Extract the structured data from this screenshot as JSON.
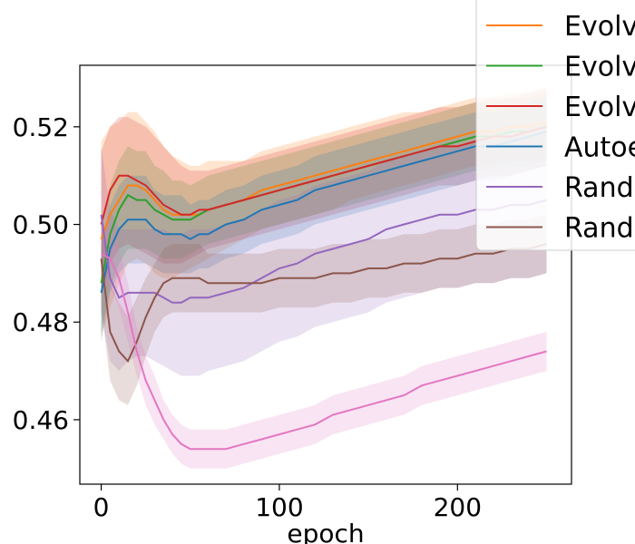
{
  "chart_data": {
    "type": "line",
    "title": "",
    "xlabel": "epoch",
    "ylabel": "",
    "xlim": [
      -12,
      264
    ],
    "ylim": [
      0.4468,
      0.5326
    ],
    "xticks": [
      0,
      100,
      200
    ],
    "yticks": [
      0.46,
      0.48,
      0.5,
      0.52
    ],
    "xtick_labels": [
      "0",
      "100",
      "200"
    ],
    "ytick_labels": [
      "0.46",
      "0.48",
      "0.50",
      "0.52"
    ],
    "grid": false,
    "legend": {
      "position": "top-right",
      "entries": [
        "Evolv",
        "Evolv",
        "Evolv",
        "Autoe",
        "Rand",
        "Rand"
      ]
    },
    "series": [
      {
        "name": "Evolv",
        "color": "#ff7f0e",
        "x": [
          0,
          5,
          10,
          15,
          20,
          25,
          30,
          35,
          40,
          45,
          50,
          55,
          60,
          70,
          80,
          90,
          100,
          110,
          120,
          130,
          140,
          150,
          160,
          170,
          180,
          190,
          200,
          210,
          220,
          230,
          240,
          250
        ],
        "y": [
          0.497,
          0.502,
          0.505,
          0.508,
          0.508,
          0.507,
          0.505,
          0.503,
          0.502,
          0.502,
          0.502,
          0.502,
          0.503,
          0.504,
          0.505,
          0.507,
          0.508,
          0.509,
          0.51,
          0.511,
          0.512,
          0.513,
          0.514,
          0.515,
          0.516,
          0.517,
          0.518,
          0.519,
          0.519,
          0.52,
          0.52,
          0.521
        ],
        "y_lower": [
          0.477,
          0.483,
          0.488,
          0.492,
          0.493,
          0.492,
          0.49,
          0.489,
          0.489,
          0.49,
          0.491,
          0.492,
          0.493,
          0.495,
          0.497,
          0.499,
          0.5,
          0.501,
          0.502,
          0.503,
          0.505,
          0.506,
          0.507,
          0.508,
          0.509,
          0.51,
          0.511,
          0.512,
          0.512,
          0.513,
          0.513,
          0.514
        ],
        "y_upper": [
          0.517,
          0.52,
          0.521,
          0.523,
          0.523,
          0.521,
          0.519,
          0.516,
          0.514,
          0.513,
          0.512,
          0.512,
          0.513,
          0.513,
          0.513,
          0.515,
          0.516,
          0.517,
          0.518,
          0.519,
          0.52,
          0.521,
          0.522,
          0.523,
          0.523,
          0.524,
          0.525,
          0.526,
          0.526,
          0.527,
          0.527,
          0.528
        ]
      },
      {
        "name": "Evolv",
        "color": "#2ca02c",
        "x": [
          0,
          5,
          10,
          15,
          20,
          25,
          30,
          35,
          40,
          45,
          50,
          55,
          60,
          70,
          80,
          90,
          100,
          110,
          120,
          130,
          140,
          150,
          160,
          170,
          180,
          190,
          200,
          210,
          220,
          230,
          240,
          250
        ],
        "y": [
          0.488,
          0.498,
          0.503,
          0.506,
          0.505,
          0.505,
          0.503,
          0.502,
          0.501,
          0.501,
          0.501,
          0.502,
          0.503,
          0.504,
          0.505,
          0.506,
          0.507,
          0.508,
          0.509,
          0.51,
          0.511,
          0.512,
          0.513,
          0.514,
          0.515,
          0.516,
          0.517,
          0.518,
          0.518,
          0.519,
          0.519,
          0.52
        ],
        "y_lower": [
          0.478,
          0.487,
          0.492,
          0.495,
          0.495,
          0.495,
          0.494,
          0.493,
          0.493,
          0.493,
          0.494,
          0.495,
          0.496,
          0.497,
          0.498,
          0.499,
          0.5,
          0.501,
          0.502,
          0.503,
          0.504,
          0.505,
          0.506,
          0.507,
          0.508,
          0.509,
          0.51,
          0.511,
          0.511,
          0.512,
          0.512,
          0.513
        ],
        "y_upper": [
          0.498,
          0.508,
          0.513,
          0.516,
          0.515,
          0.515,
          0.512,
          0.511,
          0.509,
          0.509,
          0.508,
          0.509,
          0.51,
          0.511,
          0.512,
          0.513,
          0.514,
          0.515,
          0.516,
          0.517,
          0.518,
          0.519,
          0.52,
          0.521,
          0.522,
          0.523,
          0.524,
          0.525,
          0.525,
          0.526,
          0.526,
          0.527
        ]
      },
      {
        "name": "Evolv",
        "color": "#d62728",
        "x": [
          0,
          5,
          10,
          15,
          20,
          25,
          30,
          35,
          40,
          45,
          50,
          55,
          60,
          70,
          80,
          90,
          100,
          110,
          120,
          130,
          140,
          150,
          160,
          170,
          180,
          190,
          200,
          210,
          220,
          230,
          240,
          250
        ],
        "y": [
          0.5,
          0.507,
          0.51,
          0.51,
          0.509,
          0.508,
          0.506,
          0.504,
          0.503,
          0.502,
          0.502,
          0.503,
          0.503,
          0.504,
          0.505,
          0.506,
          0.507,
          0.508,
          0.509,
          0.51,
          0.511,
          0.512,
          0.513,
          0.514,
          0.515,
          0.516,
          0.516,
          0.517,
          0.518,
          0.518,
          0.519,
          0.52
        ],
        "y_lower": [
          0.485,
          0.492,
          0.495,
          0.496,
          0.495,
          0.494,
          0.493,
          0.492,
          0.492,
          0.492,
          0.493,
          0.494,
          0.495,
          0.496,
          0.497,
          0.498,
          0.499,
          0.5,
          0.501,
          0.502,
          0.503,
          0.504,
          0.505,
          0.506,
          0.507,
          0.508,
          0.508,
          0.509,
          0.51,
          0.51,
          0.511,
          0.512
        ],
        "y_upper": [
          0.515,
          0.52,
          0.522,
          0.522,
          0.521,
          0.52,
          0.518,
          0.516,
          0.514,
          0.512,
          0.511,
          0.511,
          0.511,
          0.512,
          0.513,
          0.514,
          0.515,
          0.516,
          0.517,
          0.518,
          0.519,
          0.52,
          0.521,
          0.522,
          0.523,
          0.524,
          0.524,
          0.525,
          0.526,
          0.526,
          0.527,
          0.528
        ]
      },
      {
        "name": "Autoe",
        "color": "#1f77b4",
        "x": [
          0,
          5,
          10,
          15,
          20,
          25,
          30,
          35,
          40,
          45,
          50,
          55,
          60,
          70,
          80,
          90,
          100,
          110,
          120,
          130,
          140,
          150,
          160,
          170,
          180,
          190,
          200,
          210,
          220,
          230,
          240,
          250
        ],
        "y": [
          0.486,
          0.495,
          0.499,
          0.501,
          0.501,
          0.501,
          0.499,
          0.498,
          0.498,
          0.498,
          0.497,
          0.498,
          0.498,
          0.5,
          0.501,
          0.503,
          0.504,
          0.505,
          0.507,
          0.508,
          0.509,
          0.51,
          0.511,
          0.512,
          0.513,
          0.514,
          0.515,
          0.516,
          0.516,
          0.517,
          0.518,
          0.519
        ],
        "y_lower": [
          0.476,
          0.486,
          0.49,
          0.492,
          0.492,
          0.492,
          0.491,
          0.49,
          0.49,
          0.49,
          0.49,
          0.491,
          0.491,
          0.493,
          0.494,
          0.496,
          0.497,
          0.498,
          0.5,
          0.501,
          0.502,
          0.503,
          0.504,
          0.505,
          0.506,
          0.507,
          0.508,
          0.509,
          0.509,
          0.51,
          0.511,
          0.512
        ],
        "y_upper": [
          0.496,
          0.504,
          0.508,
          0.51,
          0.51,
          0.51,
          0.507,
          0.506,
          0.506,
          0.506,
          0.504,
          0.505,
          0.505,
          0.507,
          0.508,
          0.51,
          0.511,
          0.512,
          0.514,
          0.515,
          0.516,
          0.517,
          0.518,
          0.519,
          0.52,
          0.521,
          0.522,
          0.523,
          0.523,
          0.524,
          0.525,
          0.526
        ]
      },
      {
        "name": "Rand",
        "color": "#9467bd",
        "x": [
          0,
          5,
          10,
          15,
          20,
          25,
          30,
          35,
          40,
          45,
          50,
          55,
          60,
          70,
          80,
          90,
          100,
          110,
          120,
          130,
          140,
          150,
          160,
          170,
          180,
          190,
          200,
          210,
          220,
          230,
          240,
          250
        ],
        "y": [
          0.502,
          0.489,
          0.485,
          0.486,
          0.486,
          0.486,
          0.486,
          0.485,
          0.484,
          0.484,
          0.485,
          0.485,
          0.485,
          0.486,
          0.487,
          0.489,
          0.491,
          0.492,
          0.494,
          0.495,
          0.496,
          0.497,
          0.499,
          0.5,
          0.501,
          0.502,
          0.502,
          0.503,
          0.503,
          0.504,
          0.504,
          0.505
        ],
        "y_lower": [
          0.482,
          0.472,
          0.47,
          0.472,
          0.473,
          0.473,
          0.472,
          0.471,
          0.47,
          0.469,
          0.469,
          0.469,
          0.47,
          0.471,
          0.472,
          0.474,
          0.476,
          0.477,
          0.479,
          0.48,
          0.481,
          0.482,
          0.484,
          0.485,
          0.486,
          0.487,
          0.487,
          0.488,
          0.488,
          0.489,
          0.489,
          0.49
        ],
        "y_upper": [
          0.516,
          0.503,
          0.499,
          0.499,
          0.499,
          0.499,
          0.499,
          0.499,
          0.498,
          0.498,
          0.499,
          0.499,
          0.499,
          0.5,
          0.501,
          0.503,
          0.505,
          0.506,
          0.508,
          0.509,
          0.51,
          0.511,
          0.513,
          0.514,
          0.515,
          0.516,
          0.516,
          0.517,
          0.517,
          0.518,
          0.518,
          0.519
        ]
      },
      {
        "name": "Rand",
        "color": "#8c564b",
        "x": [
          0,
          5,
          10,
          15,
          20,
          25,
          30,
          35,
          40,
          45,
          50,
          55,
          60,
          70,
          80,
          90,
          100,
          110,
          120,
          130,
          140,
          150,
          160,
          170,
          180,
          190,
          200,
          210,
          220,
          230,
          240,
          250
        ],
        "y": [
          0.493,
          0.478,
          0.474,
          0.472,
          0.476,
          0.481,
          0.485,
          0.488,
          0.489,
          0.489,
          0.489,
          0.489,
          0.488,
          0.488,
          0.488,
          0.488,
          0.489,
          0.489,
          0.489,
          0.49,
          0.49,
          0.491,
          0.491,
          0.492,
          0.492,
          0.493,
          0.493,
          0.494,
          0.494,
          0.495,
          0.495,
          0.496
        ],
        "y_lower": [
          0.483,
          0.468,
          0.464,
          0.463,
          0.467,
          0.473,
          0.478,
          0.481,
          0.482,
          0.482,
          0.482,
          0.482,
          0.482,
          0.482,
          0.482,
          0.482,
          0.483,
          0.483,
          0.483,
          0.484,
          0.484,
          0.485,
          0.485,
          0.486,
          0.486,
          0.487,
          0.487,
          0.488,
          0.488,
          0.489,
          0.489,
          0.49
        ],
        "y_upper": [
          0.503,
          0.488,
          0.484,
          0.481,
          0.485,
          0.489,
          0.492,
          0.495,
          0.496,
          0.496,
          0.496,
          0.496,
          0.494,
          0.494,
          0.494,
          0.494,
          0.495,
          0.495,
          0.495,
          0.496,
          0.496,
          0.497,
          0.497,
          0.498,
          0.498,
          0.499,
          0.499,
          0.5,
          0.5,
          0.501,
          0.501,
          0.502
        ]
      },
      {
        "name": "",
        "color": "#e377c2",
        "x": [
          0,
          5,
          10,
          15,
          20,
          25,
          30,
          35,
          40,
          45,
          50,
          55,
          60,
          65,
          70,
          80,
          90,
          100,
          110,
          120,
          130,
          140,
          150,
          160,
          170,
          180,
          190,
          200,
          210,
          220,
          230,
          240,
          250
        ],
        "y": [
          0.494,
          0.493,
          0.489,
          0.482,
          0.474,
          0.468,
          0.464,
          0.46,
          0.457,
          0.455,
          0.454,
          0.454,
          0.454,
          0.454,
          0.454,
          0.455,
          0.456,
          0.457,
          0.458,
          0.459,
          0.461,
          0.462,
          0.463,
          0.464,
          0.465,
          0.467,
          0.468,
          0.469,
          0.47,
          0.471,
          0.472,
          0.473,
          0.474
        ],
        "y_lower": [
          0.488,
          0.487,
          0.483,
          0.476,
          0.469,
          0.463,
          0.459,
          0.456,
          0.453,
          0.451,
          0.45,
          0.45,
          0.45,
          0.45,
          0.45,
          0.451,
          0.452,
          0.453,
          0.454,
          0.455,
          0.457,
          0.458,
          0.459,
          0.46,
          0.461,
          0.463,
          0.464,
          0.465,
          0.466,
          0.467,
          0.468,
          0.469,
          0.47
        ],
        "y_upper": [
          0.5,
          0.499,
          0.495,
          0.488,
          0.479,
          0.473,
          0.469,
          0.464,
          0.461,
          0.459,
          0.458,
          0.458,
          0.458,
          0.458,
          0.458,
          0.459,
          0.46,
          0.461,
          0.462,
          0.463,
          0.465,
          0.466,
          0.467,
          0.468,
          0.469,
          0.471,
          0.472,
          0.473,
          0.474,
          0.475,
          0.476,
          0.477,
          0.478
        ]
      }
    ]
  }
}
